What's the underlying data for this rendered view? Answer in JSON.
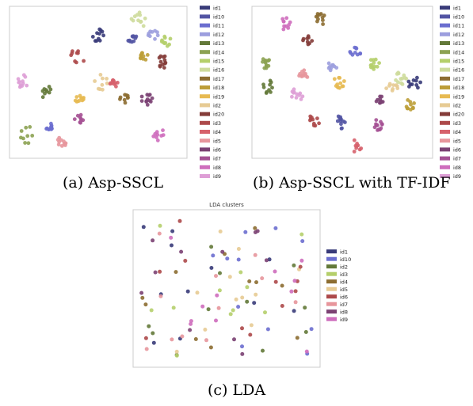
{
  "figure": {
    "panels": [
      {
        "id": "a",
        "caption": "(a) Asp-SSCL",
        "title": "",
        "legend": [
          "id1",
          "id10",
          "id11",
          "id12",
          "id13",
          "id14",
          "id15",
          "id16",
          "id17",
          "id18",
          "id19",
          "id2",
          "id20",
          "id3",
          "id4",
          "id5",
          "id6",
          "id7",
          "id8",
          "id9"
        ]
      },
      {
        "id": "b",
        "caption": "(b) Asp-SSCL with TF-IDF",
        "title": "",
        "legend": [
          "id1",
          "id10",
          "id11",
          "id12",
          "id13",
          "id14",
          "id15",
          "id16",
          "id17",
          "id18",
          "id19",
          "id2",
          "id20",
          "id3",
          "id4",
          "id5",
          "id6",
          "id7",
          "id8",
          "id9"
        ]
      },
      {
        "id": "c",
        "caption": "(c) LDA",
        "title": "LDA clusters",
        "legend": [
          "id1",
          "id10",
          "id2",
          "id3",
          "id4",
          "id5",
          "id6",
          "id7",
          "id8",
          "id9"
        ]
      }
    ],
    "colors20": {
      "id1": "#393b79",
      "id10": "#5254a3",
      "id11": "#6b6ecf",
      "id12": "#9c9ede",
      "id13": "#637939",
      "id14": "#8ca252",
      "id15": "#b5cf6b",
      "id16": "#cedb9c",
      "id17": "#8c6d31",
      "id18": "#bd9e39",
      "id19": "#e7ba52",
      "id2": "#e7cb94",
      "id20": "#843c39",
      "id3": "#ad494a",
      "id4": "#d6616b",
      "id5": "#e7969c",
      "id6": "#7b4173",
      "id7": "#a55194",
      "id8": "#ce6dbd",
      "id9": "#de9ed6"
    },
    "colors10": {
      "id1": "#393b79",
      "id10": "#6b6ecf",
      "id2": "#637939",
      "id3": "#b5cf6b",
      "id4": "#8c6d31",
      "id5": "#e7cb94",
      "id6": "#ad494a",
      "id7": "#e7969c",
      "id8": "#7b4173",
      "id9": "#ce6dbd"
    }
  }
}
